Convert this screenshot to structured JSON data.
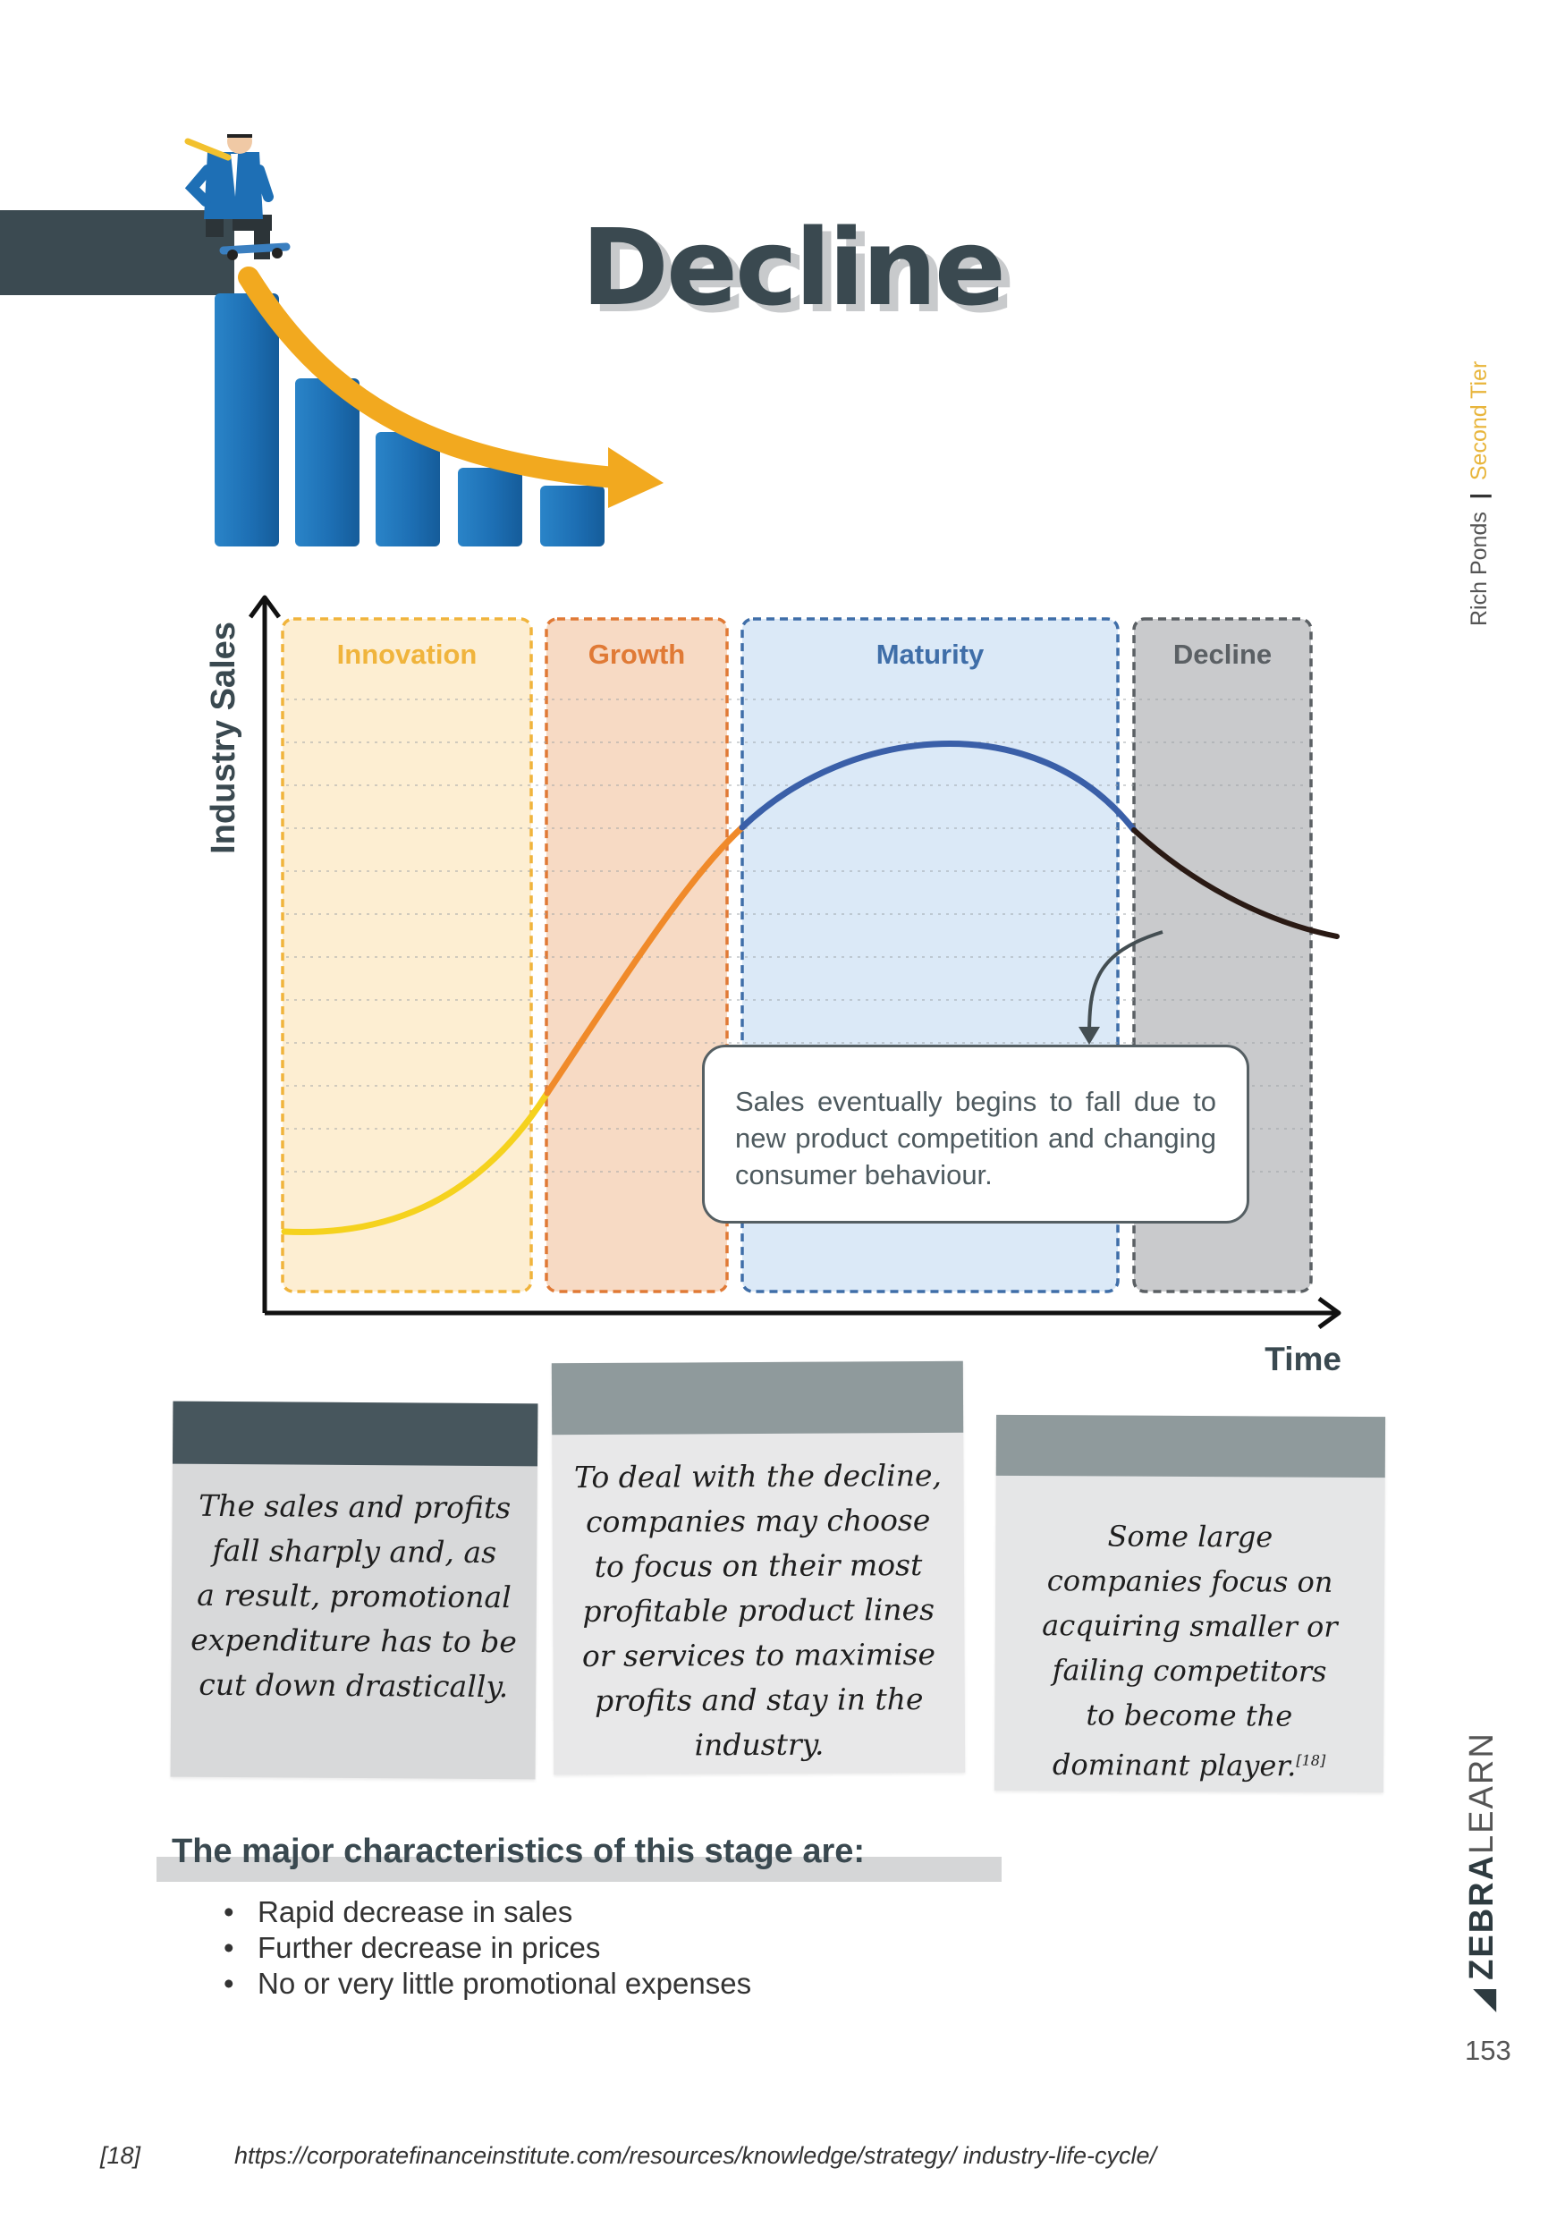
{
  "page": {
    "title": "Decline",
    "side_author": "Rich Ponds",
    "side_separator": "|",
    "side_tier": "Second Tier",
    "brand_bold": "ZEBRA",
    "brand_light": "LEARN",
    "page_number": "153"
  },
  "chart_data": {
    "type": "line",
    "xlabel": "Time",
    "ylabel": "Industry Sales",
    "stages": [
      {
        "name": "Innovation",
        "color": "#f0b43c",
        "fill": "#fdeed2"
      },
      {
        "name": "Growth",
        "color": "#e07a36",
        "fill": "#f7dac4"
      },
      {
        "name": "Maturity",
        "color": "#3f6ea8",
        "fill": "#dbe9f7"
      },
      {
        "name": "Decline",
        "color": "#5b6064",
        "fill": "#c9cacc"
      }
    ],
    "curve_colors": [
      "#f5d21e",
      "#f08a2a",
      "#3a5fa8",
      "#2a1a14"
    ],
    "callout": "Sales eventually begins to fall due to new product competition and changing consumer behaviour."
  },
  "notes": [
    {
      "lines": [
        "The sales and profits",
        "fall sharply and, as",
        "a result, promotional",
        "expenditure has to be",
        "cut down drastically."
      ]
    },
    {
      "lines": [
        "To deal with the decline,",
        "companies may choose",
        "to focus on their most",
        "profitable product lines",
        "or services to maximise",
        "profits and stay in the",
        "industry."
      ]
    },
    {
      "lines": [
        "Some large",
        "companies focus on",
        "acquiring smaller or",
        "failing competitors",
        "to become the",
        "dominant player."
      ],
      "ref": "[18]"
    }
  ],
  "characteristics": {
    "title": "The major characteristics of this stage are:",
    "items": [
      "Rapid decrease in sales",
      "Further decrease in prices",
      "No or very little promotional expenses"
    ]
  },
  "reference": {
    "num": "[18]",
    "url": "https://corporatefinanceinstitute.com/resources/knowledge/strategy/ industry-life-cycle/"
  },
  "colors": {
    "heading": "#3a4950",
    "bars": "#1f6fb2",
    "arrow": "#f2a91f",
    "cliff": "#3b4a51"
  }
}
